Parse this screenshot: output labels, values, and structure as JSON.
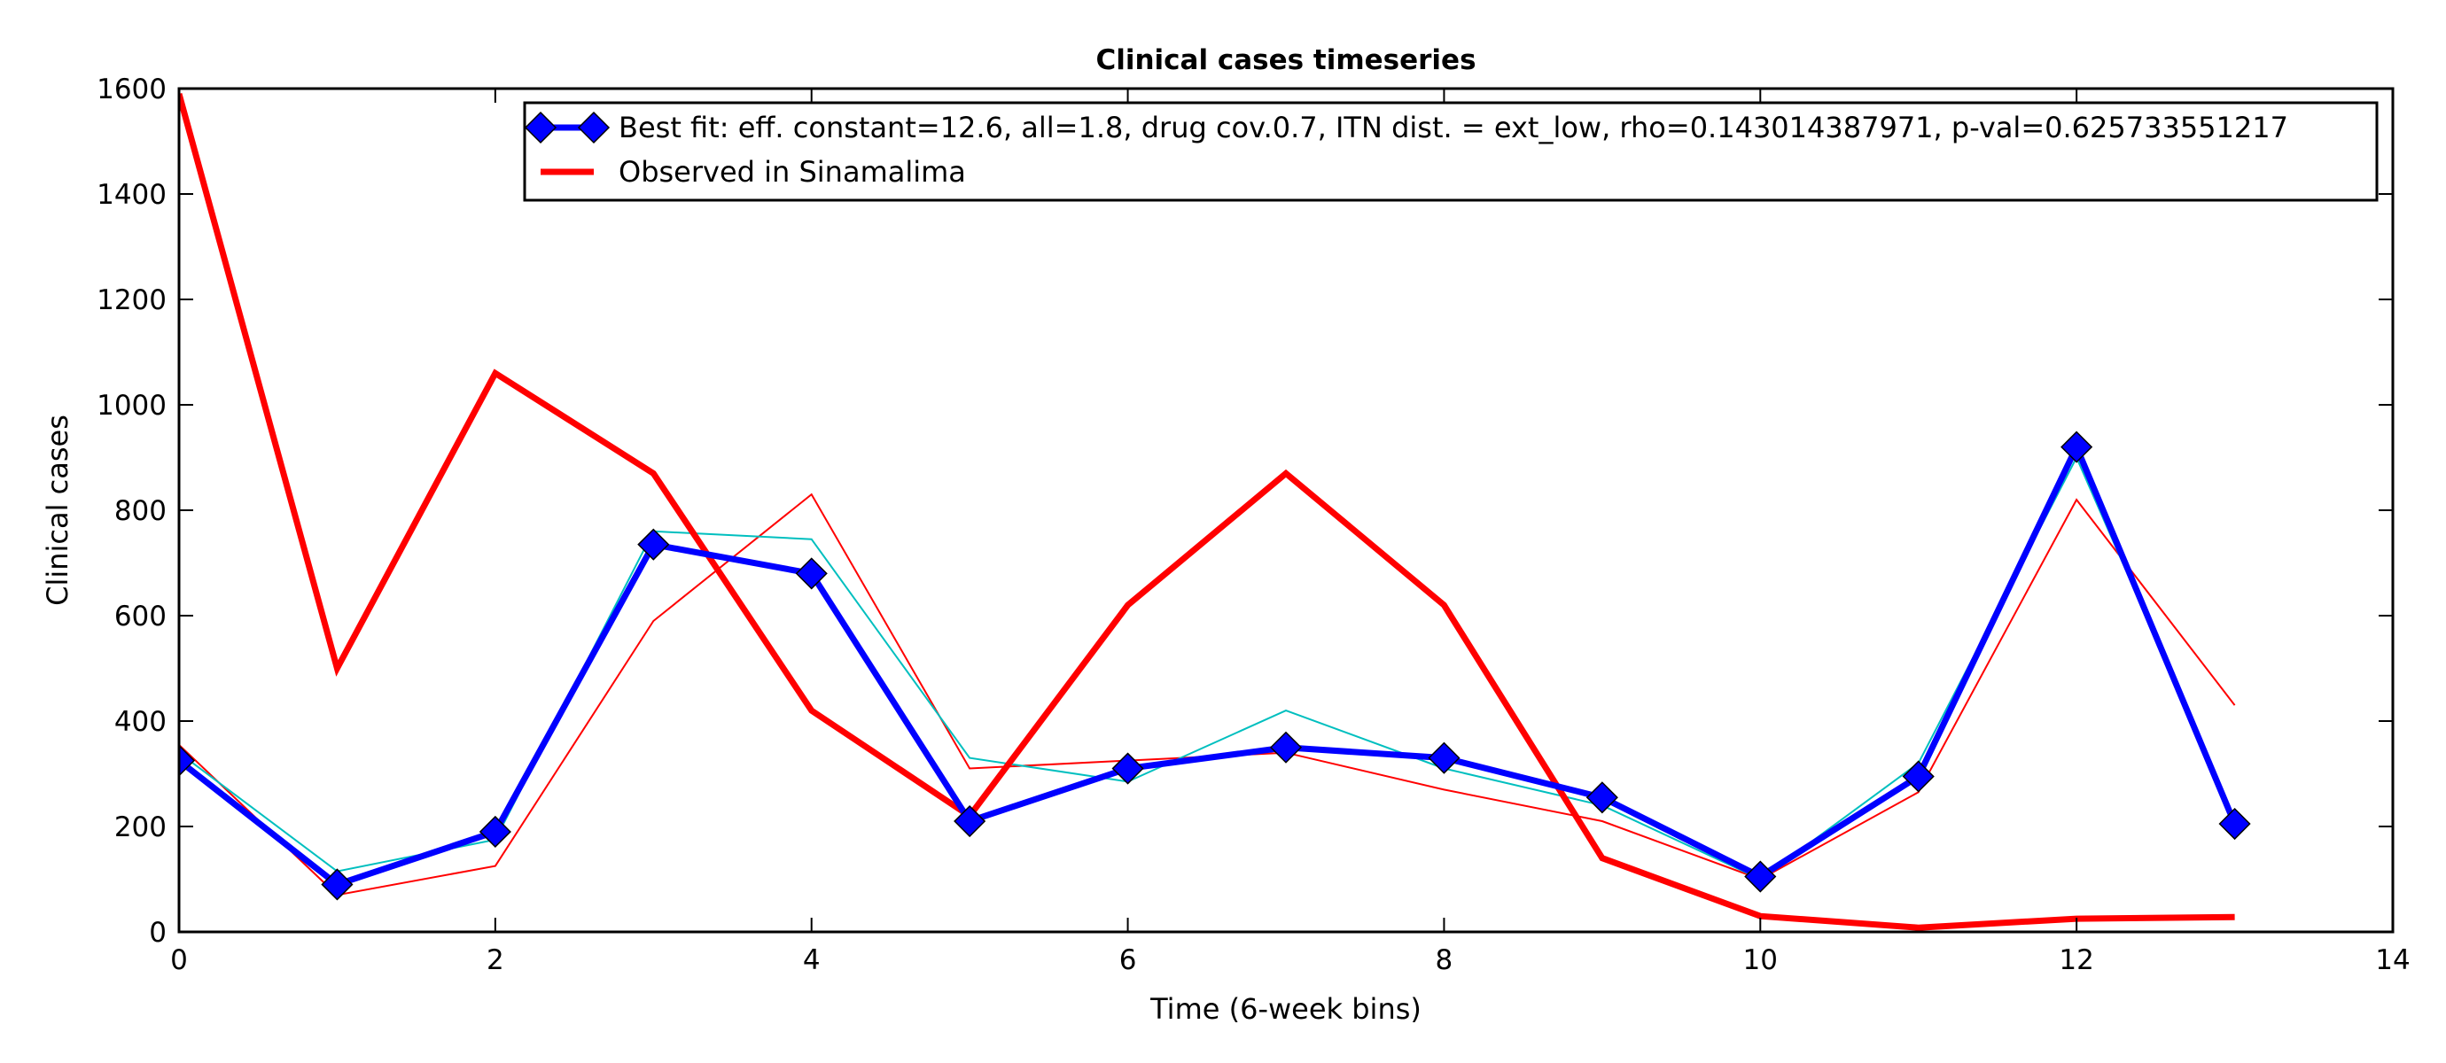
{
  "chart_data": {
    "type": "line",
    "title": "Clinical cases timeseries",
    "xlabel": "Time (6-week bins)",
    "ylabel": "Clinical cases",
    "xlim": [
      0,
      14
    ],
    "ylim": [
      0,
      1600
    ],
    "xticks": [
      "0",
      "2",
      "4",
      "6",
      "8",
      "10",
      "12",
      "14"
    ],
    "yticks": [
      "0",
      "200",
      "400",
      "600",
      "800",
      "1000",
      "1200",
      "1400",
      "1600"
    ],
    "grid": false,
    "legend_position": "top-right",
    "x": [
      0,
      1,
      2,
      3,
      4,
      5,
      6,
      7,
      8,
      9,
      10,
      11,
      12,
      13
    ],
    "series": [
      {
        "name": "Best fit: eff. constant=12.6, all=1.8, drug cov.0.7, ITN dist. = ext_low, rho=0.143014387971, p-val=0.625733551217",
        "color": "#0000ff",
        "marker": "diamond",
        "in_legend": true,
        "values": [
          325,
          90,
          190,
          735,
          680,
          210,
          310,
          350,
          330,
          255,
          105,
          295,
          920,
          205
        ]
      },
      {
        "name": "Observed in Sinamalima",
        "color": "#ff0000",
        "marker": "none",
        "in_legend": true,
        "values": [
          1590,
          500,
          1060,
          870,
          420,
          220,
          620,
          870,
          620,
          140,
          30,
          8,
          25,
          28
        ]
      },
      {
        "color": "#00bfbf",
        "marker": "none",
        "in_legend": false,
        "values": [
          340,
          115,
          175,
          760,
          745,
          330,
          285,
          420,
          310,
          240,
          100,
          320,
          900,
          215
        ]
      },
      {
        "color": "#ff0000",
        "marker": "none",
        "in_legend": false,
        "values": [
          355,
          70,
          125,
          590,
          830,
          310,
          325,
          340,
          270,
          210,
          100,
          265,
          820,
          430
        ]
      }
    ]
  }
}
